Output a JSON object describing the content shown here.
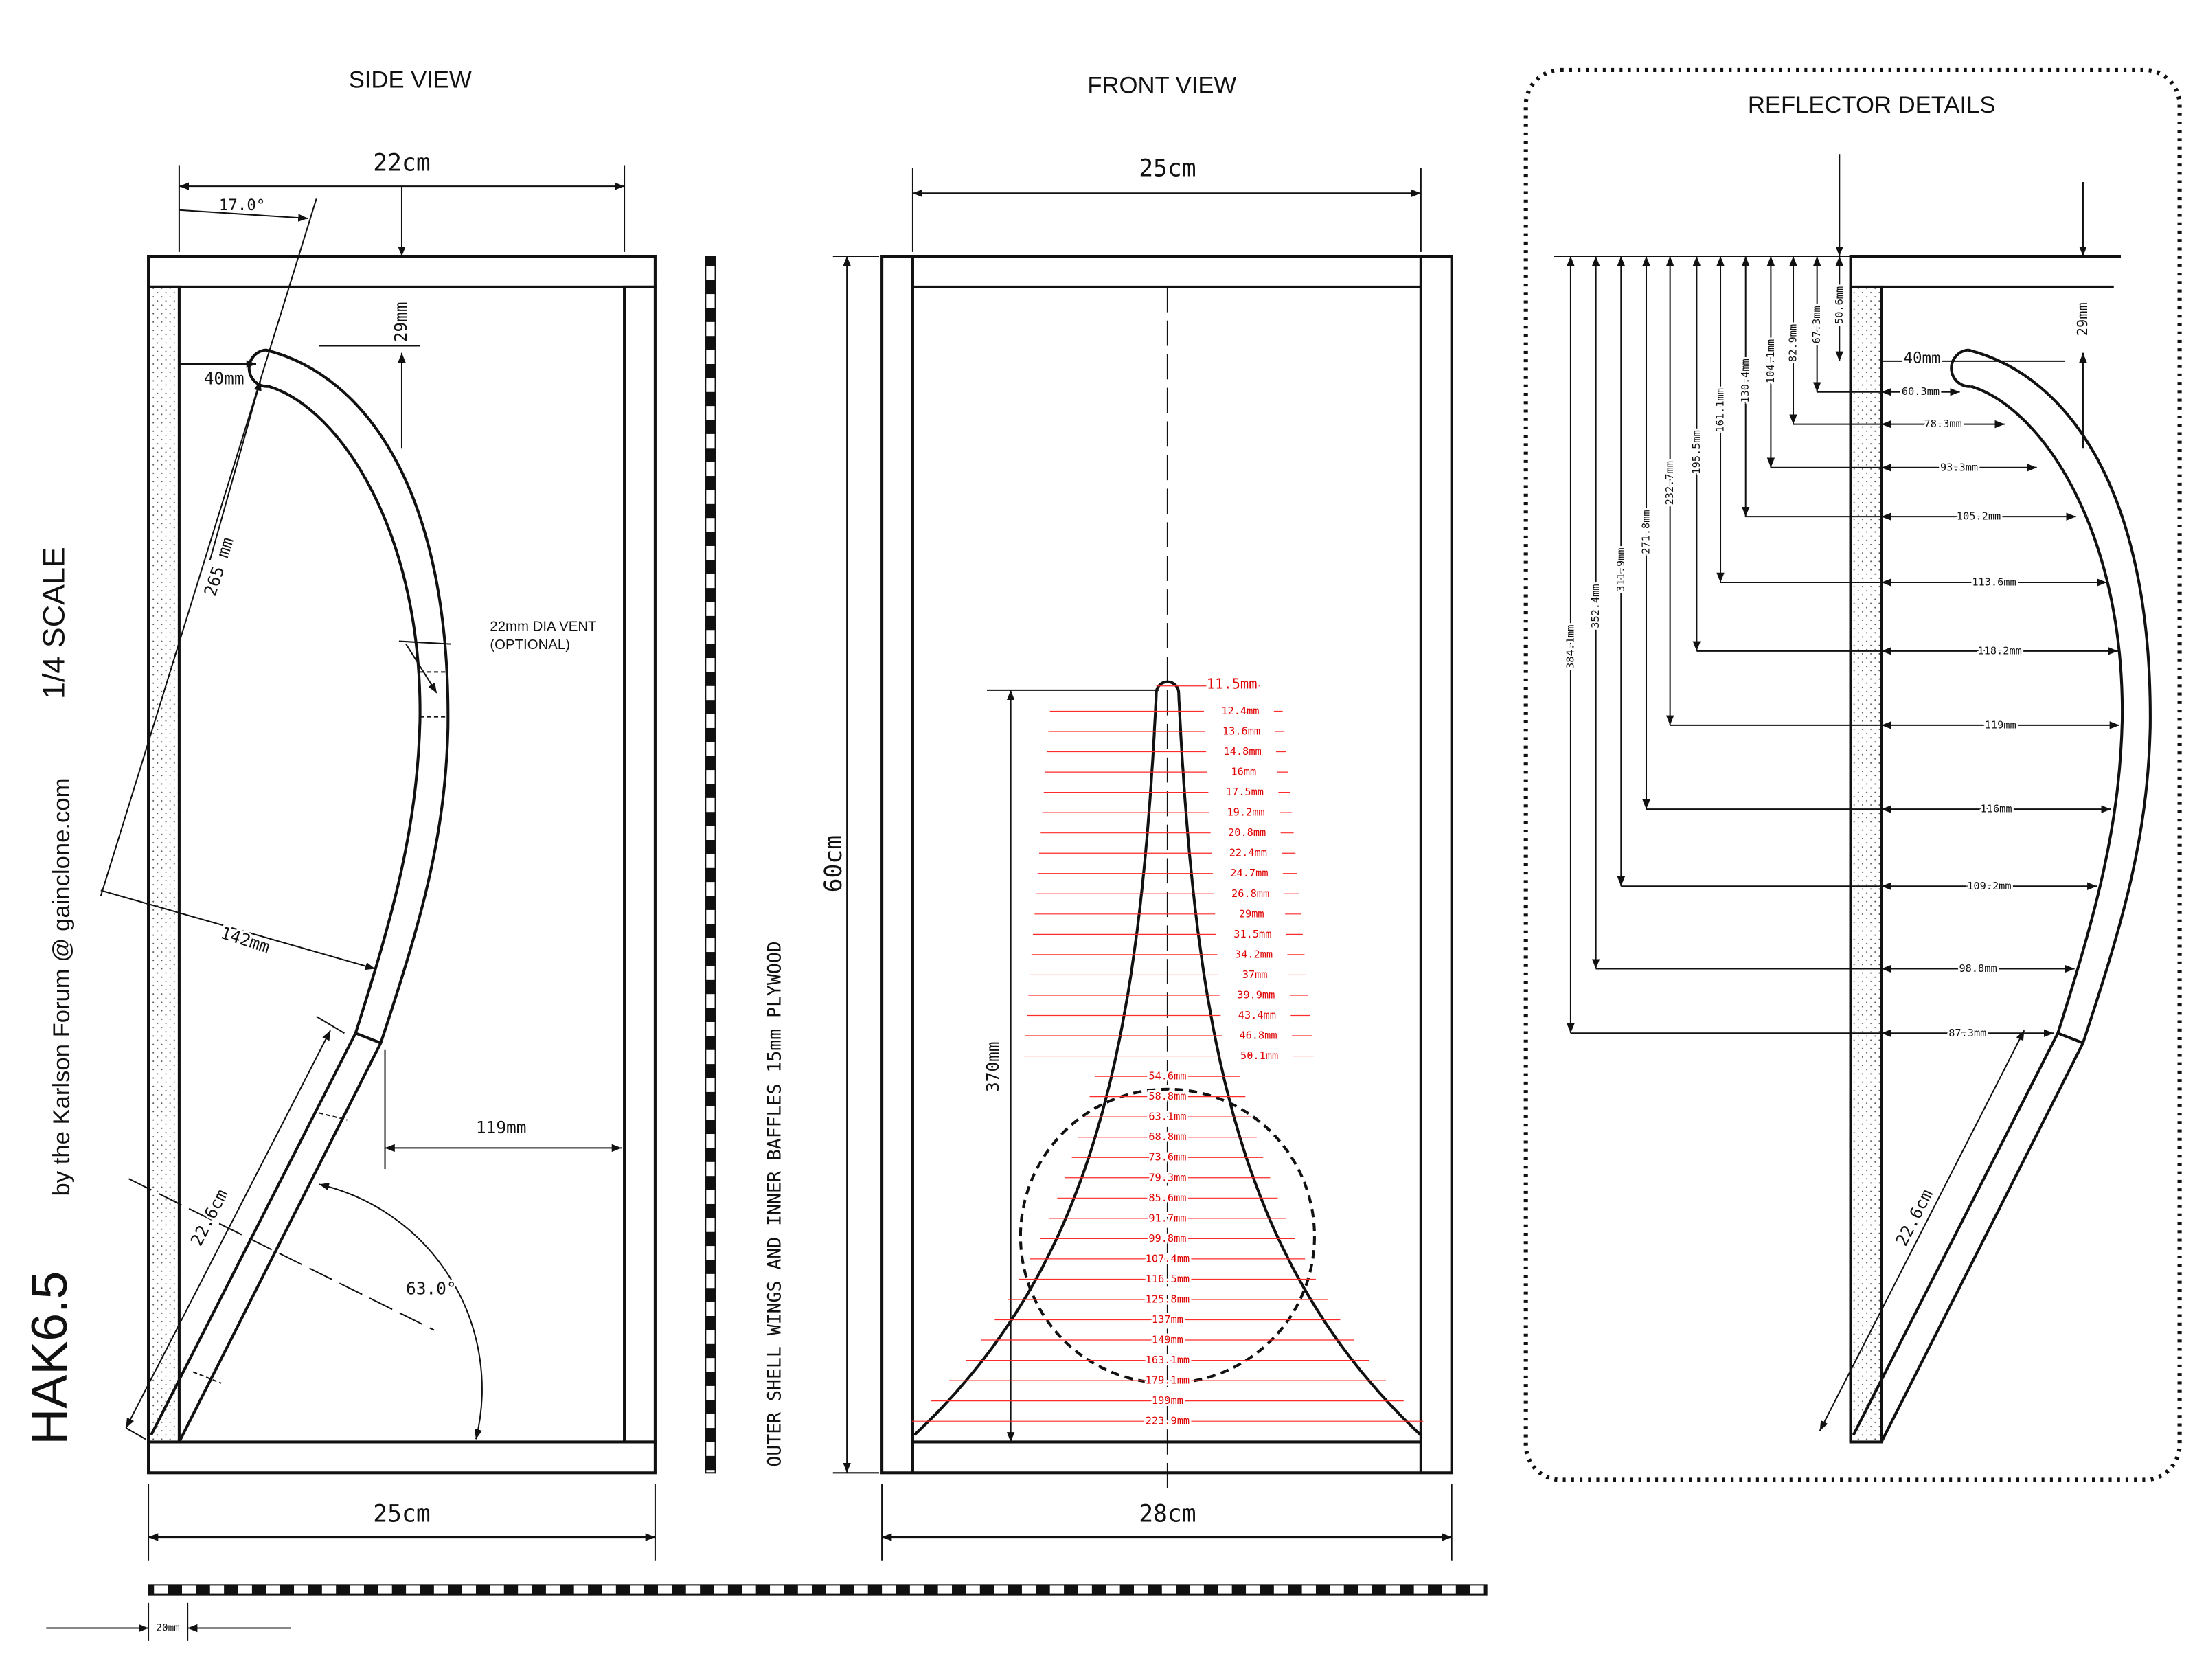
{
  "title": "HAK6.5",
  "byline": "by the Karlson Forum @ gainclone.com",
  "scale": "1/4 SCALE",
  "material_note": "OUTER SHELL WINGS AND INNER BAFFLES 15mm PLYWOOD",
  "scale_bar": "20mm",
  "side_view": {
    "title": "SIDE VIEW",
    "width_top": "22cm",
    "angle_top": "17.0°",
    "top_gap": "29mm",
    "lip_gap": "40mm",
    "radius": "265 mm",
    "vent": "22mm DIA VENT",
    "vent_note": "(OPTIONAL)",
    "radius_offset": "142mm",
    "depth": "119mm",
    "lower_length": "22.6cm",
    "angle_bottom": "63.0°",
    "width_bottom": "25cm"
  },
  "front_view": {
    "title": "FRONT VIEW",
    "width_top": "25cm",
    "height": "60cm",
    "width_bottom": "28cm",
    "horn_length": "370mm",
    "horn_widths": [
      "11.5mm",
      "12.4mm",
      "13.6mm",
      "14.8mm",
      "16mm",
      "17.5mm",
      "19.2mm",
      "20.8mm",
      "22.4mm",
      "24.7mm",
      "26.8mm",
      "29mm",
      "31.5mm",
      "34.2mm",
      "37mm",
      "39.9mm",
      "43.4mm",
      "46.8mm",
      "50.1mm",
      "54.6mm",
      "58.8mm",
      "63.1mm",
      "68.8mm",
      "73.6mm",
      "79.3mm",
      "85.6mm",
      "91.7mm",
      "99.8mm",
      "107.4mm",
      "116.5mm",
      "125.8mm",
      "137mm",
      "149mm",
      "163.1mm",
      "179.1mm",
      "199mm",
      "223.9mm"
    ]
  },
  "reflector": {
    "title": "REFLECTOR DETAILS",
    "top_gap": "29mm",
    "lip_gap": "40mm",
    "lower_length": "22.6cm",
    "depths": [
      "50.6mm",
      "67.3mm",
      "82.9mm",
      "104.1mm",
      "130.4mm",
      "161.1mm",
      "195.5mm",
      "232.7mm",
      "271.8mm",
      "311.9mm",
      "352.4mm",
      "384.1mm"
    ],
    "offsets": [
      "60.3mm",
      "78.3mm",
      "93.3mm",
      "105.2mm",
      "113.6mm",
      "118.2mm",
      "119mm",
      "116mm",
      "109.2mm",
      "98.8mm",
      "87.3mm"
    ]
  }
}
